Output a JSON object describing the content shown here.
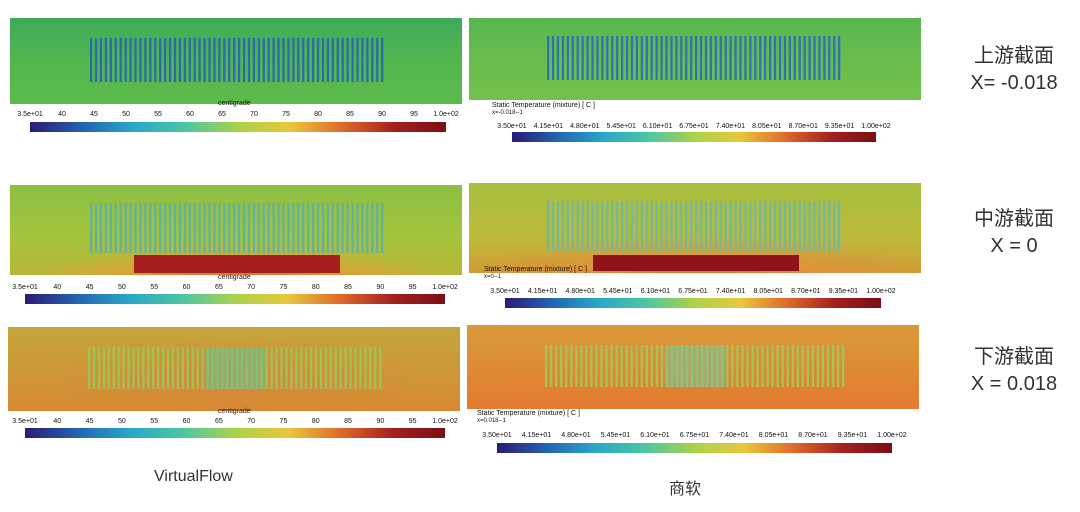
{
  "colors": {
    "scale": [
      "#2a1b74",
      "#2463b0",
      "#29a7c8",
      "#4cc6a1",
      "#a9d24a",
      "#e8c83b",
      "#e06a2b",
      "#a5201f",
      "#7a0f14"
    ],
    "panel_bg": {
      "upstream": "#55b84f",
      "middle": "#9ac33f",
      "downstream": "#c7a03a"
    },
    "panel_bg_commercial": {
      "upstream": "#67bb4e",
      "middle": "#b2bf3a",
      "downstream": "#d2923a"
    }
  },
  "rows": [
    {
      "label_line1": "上游截面",
      "label_line2": "X= -0.018"
    },
    {
      "label_line1": "中游截面",
      "label_line2": "X = 0"
    },
    {
      "label_line1": "下游截面",
      "label_line2": "X = 0.018"
    }
  ],
  "virtualflow": {
    "colorbar_title": "centigrade",
    "ticks": [
      "3.5e+01",
      "40",
      "45",
      "50",
      "55",
      "60",
      "65",
      "70",
      "75",
      "80",
      "85",
      "90",
      "95",
      "1.0e+02"
    ]
  },
  "commercial": {
    "colorbar_title": "Static Temperature (mixture)  [ C ]",
    "subtitles": [
      "x=-0.018--1",
      "x=0--1",
      "x=0.018--1"
    ],
    "ticks": [
      "3.50e+01",
      "4.15e+01",
      "4.80e+01",
      "5.45e+01",
      "6.10e+01",
      "6.75e+01",
      "7.40e+01",
      "8.05e+01",
      "8.70e+01",
      "9.35e+01",
      "1.00e+02"
    ]
  },
  "column_labels": {
    "left": "VirtualFlow",
    "right": "商软"
  }
}
